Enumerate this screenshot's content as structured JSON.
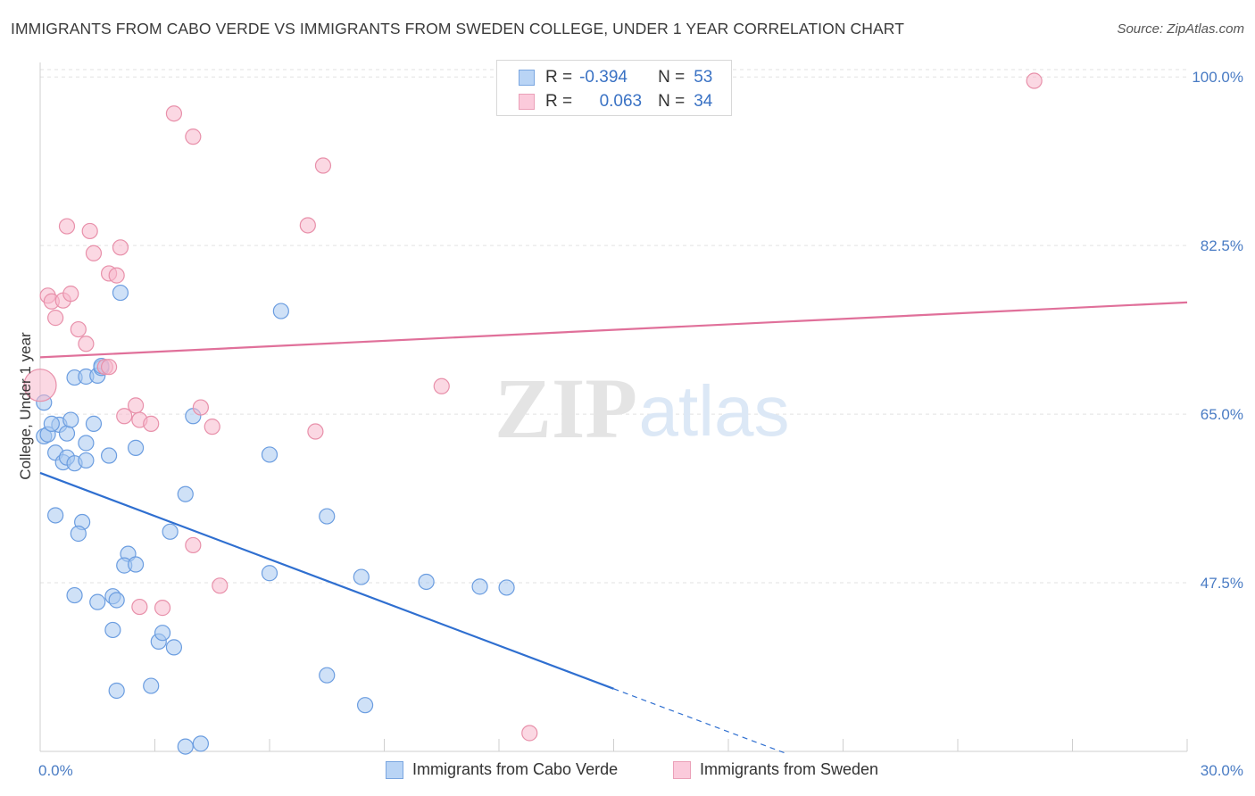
{
  "header": {
    "title": "IMMIGRANTS FROM CABO VERDE VS IMMIGRANTS FROM SWEDEN COLLEGE, UNDER 1 YEAR CORRELATION CHART",
    "source": "Source: ZipAtlas.com"
  },
  "legend": {
    "series": [
      {
        "r_label": "R =",
        "r_value": "-0.394",
        "n_label": "N =",
        "n_value": "53"
      },
      {
        "r_label": "R =",
        "r_value": "0.063",
        "n_label": "N =",
        "n_value": "34"
      }
    ]
  },
  "bottom_legend": {
    "series_a": "Immigrants from Cabo Verde",
    "series_b": "Immigrants from Sweden"
  },
  "watermark": {
    "zip": "ZIP",
    "atlas": "atlas"
  },
  "colors": {
    "blue_fill": "#a8c8f0",
    "blue_stroke": "#6b9de0",
    "blue_line": "#2f6fd0",
    "pink_fill": "#f7b8cc",
    "pink_stroke": "#e890aa",
    "pink_line": "#e0709a",
    "tick_text": "#4a7cc4"
  },
  "chart_data": {
    "type": "scatter",
    "title": "IMMIGRANTS FROM CABO VERDE VS IMMIGRANTS FROM SWEDEN COLLEGE, UNDER 1 YEAR CORRELATION CHART",
    "ylabel": "College, Under 1 year",
    "xlim": [
      0,
      30
    ],
    "ylim": [
      30,
      101.5
    ],
    "x_ticks": [
      0,
      3,
      6,
      9,
      12,
      15,
      18,
      21,
      24,
      27,
      30
    ],
    "x_tick_labels": {
      "0": "0.0%",
      "30": "30.0%"
    },
    "y_ticks": [
      47.5,
      65.0,
      82.5,
      100.0
    ],
    "y_tick_labels": [
      "47.5%",
      "65.0%",
      "82.5%",
      "100.0%"
    ],
    "grid": true,
    "legend_position": "top-center",
    "series": [
      {
        "name": "Immigrants from Cabo Verde",
        "color": "blue",
        "points": [
          [
            0.1,
            66.2
          ],
          [
            0.1,
            62.7
          ],
          [
            0.2,
            62.9
          ],
          [
            0.4,
            61.0
          ],
          [
            0.5,
            63.9
          ],
          [
            0.6,
            60.0
          ],
          [
            0.7,
            60.5
          ],
          [
            0.7,
            63.0
          ],
          [
            0.8,
            64.4
          ],
          [
            0.9,
            59.9
          ],
          [
            0.9,
            68.8
          ],
          [
            1.2,
            62.0
          ],
          [
            1.2,
            60.2
          ],
          [
            1.2,
            68.9
          ],
          [
            1.4,
            64.0
          ],
          [
            1.5,
            69.0
          ],
          [
            1.6,
            69.8
          ],
          [
            1.8,
            60.7
          ],
          [
            2.1,
            77.6
          ],
          [
            0.4,
            54.5
          ],
          [
            1.1,
            53.8
          ],
          [
            1.0,
            52.6
          ],
          [
            2.3,
            50.5
          ],
          [
            2.2,
            49.3
          ],
          [
            2.5,
            49.4
          ],
          [
            0.9,
            46.2
          ],
          [
            1.5,
            45.5
          ],
          [
            1.9,
            46.1
          ],
          [
            2.0,
            45.7
          ],
          [
            1.9,
            42.6
          ],
          [
            3.1,
            41.4
          ],
          [
            3.2,
            42.3
          ],
          [
            3.5,
            40.8
          ],
          [
            2.0,
            36.3
          ],
          [
            2.9,
            36.8
          ],
          [
            3.4,
            52.8
          ],
          [
            3.8,
            56.7
          ],
          [
            4.0,
            64.8
          ],
          [
            6.0,
            60.8
          ],
          [
            6.3,
            75.7
          ],
          [
            6.0,
            48.5
          ],
          [
            7.5,
            54.4
          ],
          [
            7.5,
            37.9
          ],
          [
            8.4,
            48.1
          ],
          [
            8.5,
            34.8
          ],
          [
            10.1,
            47.6
          ],
          [
            11.5,
            47.1
          ],
          [
            12.2,
            47.0
          ],
          [
            3.8,
            30.5
          ],
          [
            4.2,
            30.8
          ],
          [
            0.3,
            64.0
          ],
          [
            1.6,
            70.0
          ],
          [
            2.5,
            61.5
          ]
        ]
      },
      {
        "name": "Immigrants from Sweden",
        "color": "pink",
        "points": [
          [
            0.0,
            68.0
          ],
          [
            0.2,
            77.3
          ],
          [
            0.3,
            76.7
          ],
          [
            0.4,
            75.0
          ],
          [
            0.6,
            76.8
          ],
          [
            0.7,
            84.5
          ],
          [
            0.8,
            77.5
          ],
          [
            1.0,
            73.8
          ],
          [
            1.2,
            72.3
          ],
          [
            1.3,
            84.0
          ],
          [
            1.4,
            81.7
          ],
          [
            1.7,
            69.9
          ],
          [
            1.8,
            79.6
          ],
          [
            2.0,
            79.4
          ],
          [
            2.1,
            82.3
          ],
          [
            2.2,
            64.8
          ],
          [
            2.5,
            65.9
          ],
          [
            2.6,
            64.4
          ],
          [
            2.9,
            64.0
          ],
          [
            3.2,
            44.9
          ],
          [
            3.5,
            96.2
          ],
          [
            4.0,
            93.8
          ],
          [
            4.2,
            65.7
          ],
          [
            4.5,
            63.7
          ],
          [
            4.0,
            51.4
          ],
          [
            4.7,
            47.2
          ],
          [
            7.0,
            84.6
          ],
          [
            7.2,
            63.2
          ],
          [
            7.4,
            90.8
          ],
          [
            10.5,
            67.9
          ],
          [
            12.8,
            31.9
          ],
          [
            26.0,
            99.6
          ],
          [
            2.6,
            45.0
          ],
          [
            1.8,
            69.9
          ]
        ]
      }
    ],
    "trend_lines": [
      {
        "series": "Immigrants from Cabo Verde",
        "x0": 0.0,
        "y0": 58.9,
        "x1": 15.0,
        "y1": 36.5,
        "dashed_to_x": 19.5,
        "dashed_to_y": 29.8
      },
      {
        "series": "Immigrants from Sweden",
        "x0": 0.0,
        "y0": 70.9,
        "x1": 30.0,
        "y1": 76.6
      }
    ]
  }
}
